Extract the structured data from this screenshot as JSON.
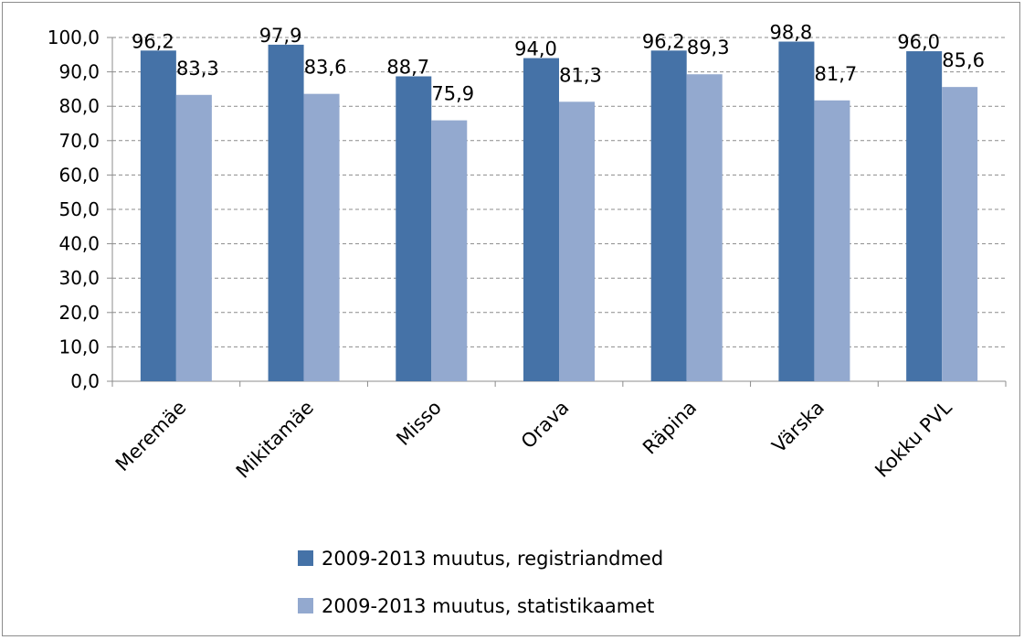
{
  "chart_data": {
    "type": "bar",
    "categories": [
      "Meremäe",
      "Mikitamäe",
      "Misso",
      "Orava",
      "Räpina",
      "Värska",
      "Kokku PVL"
    ],
    "series": [
      {
        "name": "2009-2013 muutus, registriandmed",
        "values": [
          96.2,
          97.9,
          88.7,
          94.0,
          96.2,
          98.8,
          96.0
        ],
        "labels": [
          "96,2",
          "97,9",
          "88,7",
          "94,0",
          "96,2",
          "98,8",
          "96,0"
        ],
        "color": "#4572A7"
      },
      {
        "name": "2009-2013 muutus, statistikaamet",
        "values": [
          83.3,
          83.6,
          75.9,
          81.3,
          89.3,
          81.7,
          85.6
        ],
        "labels": [
          "83,3",
          "83,6",
          "75,9",
          "81,3",
          "89,3",
          "81,7",
          "85,6"
        ],
        "color": "#93A9CF"
      }
    ],
    "yticks": [
      "0,0",
      "10,0",
      "20,0",
      "30,0",
      "40,0",
      "50,0",
      "60,0",
      "70,0",
      "80,0",
      "90,0",
      "100,0"
    ],
    "ylim": [
      0,
      100
    ],
    "grid": true,
    "legend_position": "bottom"
  }
}
